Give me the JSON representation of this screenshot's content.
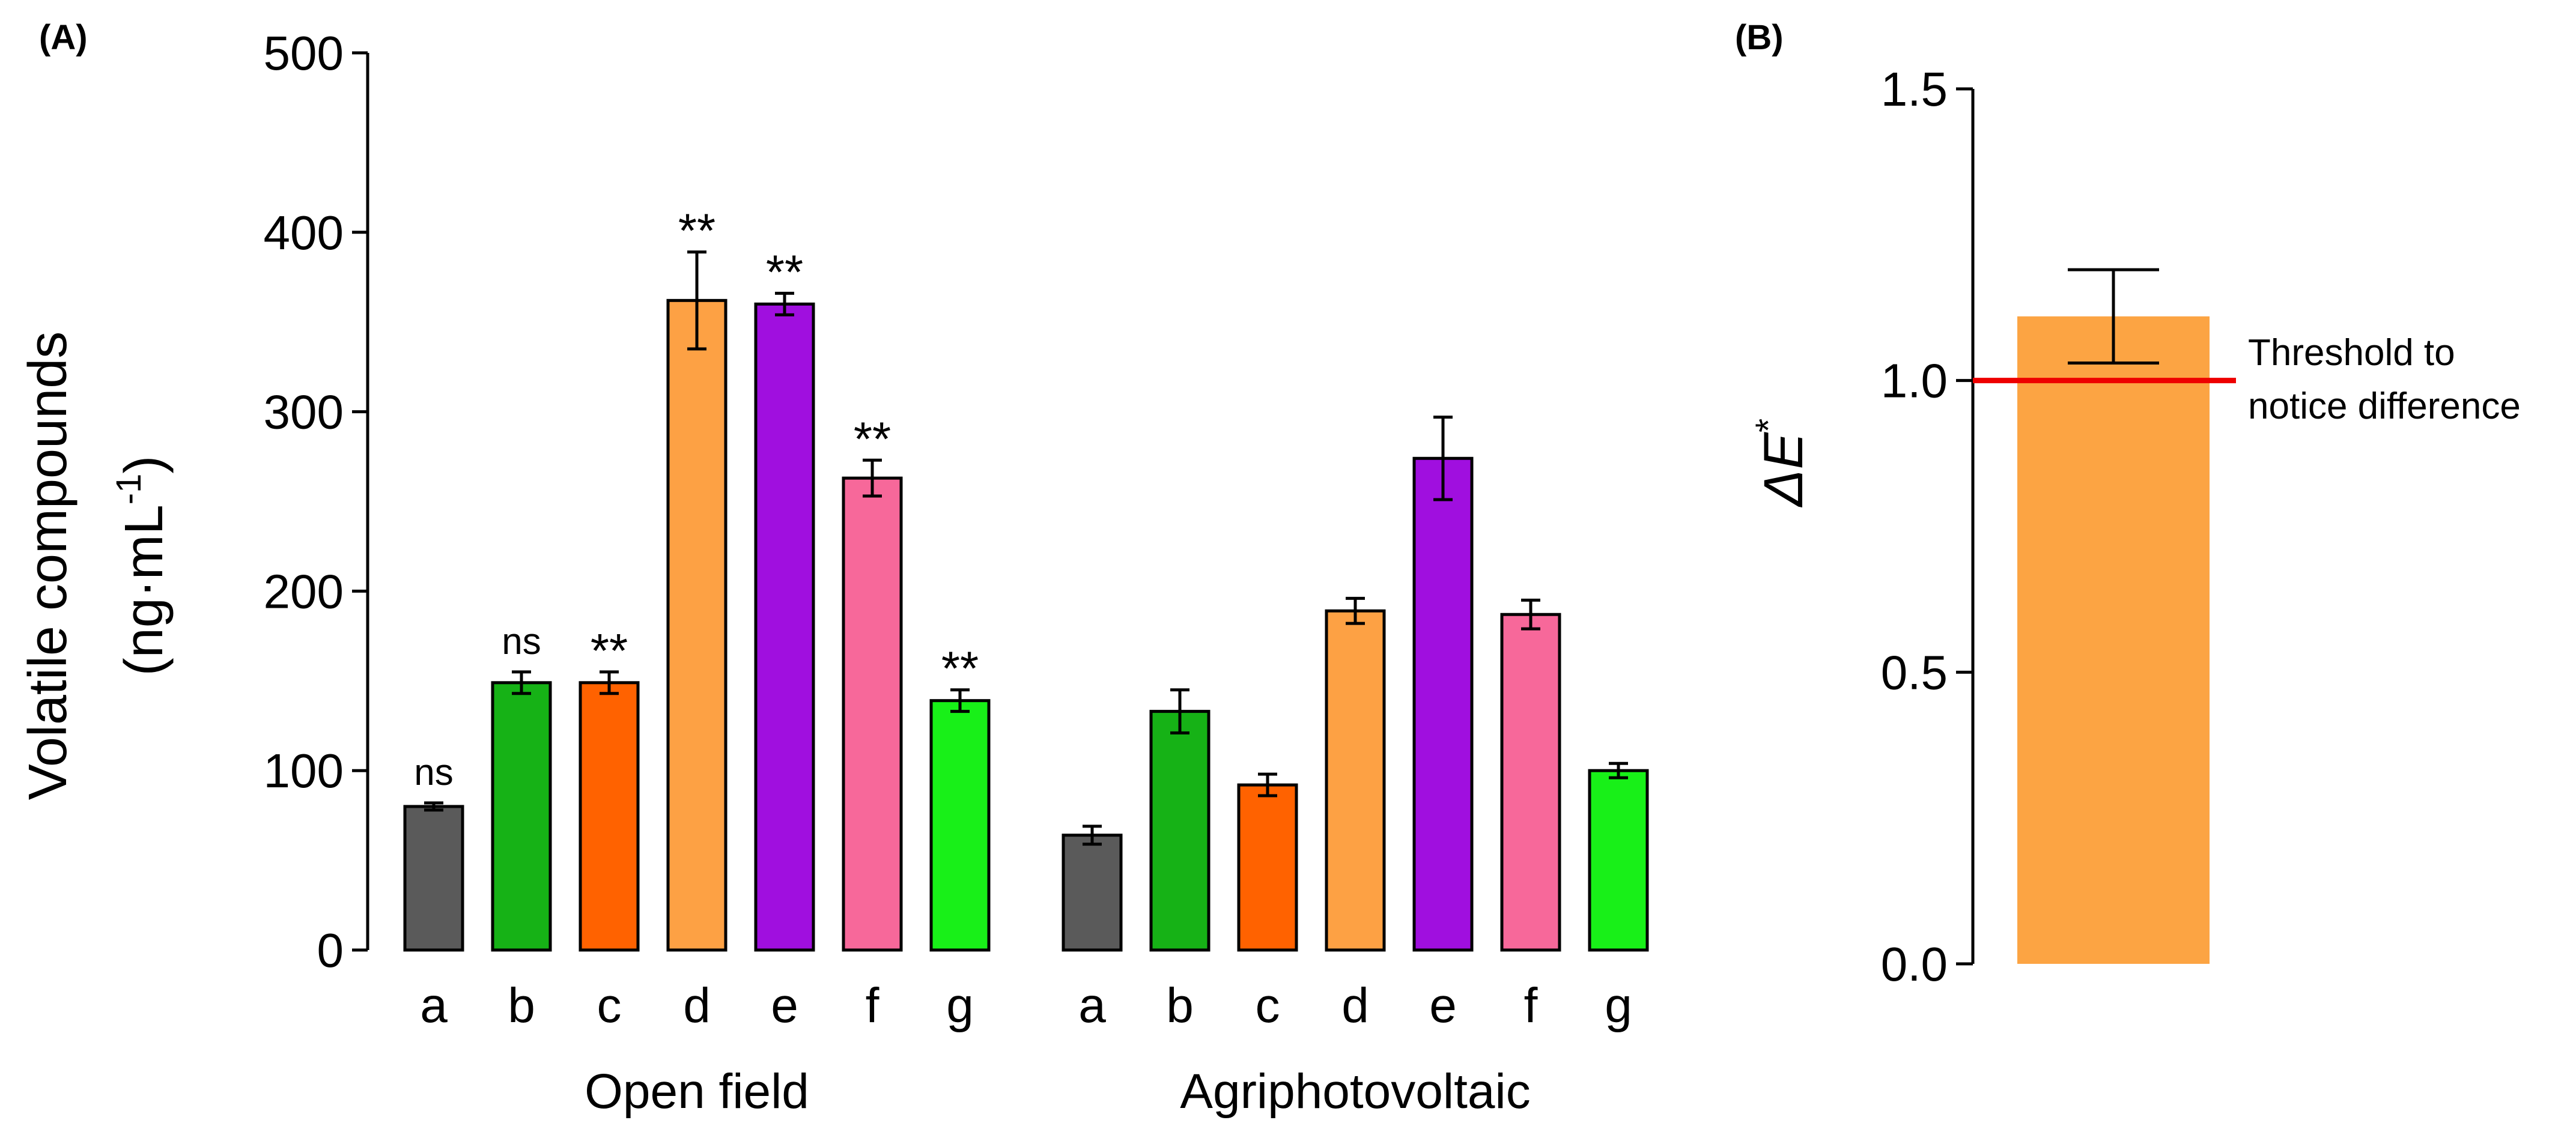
{
  "panels": {
    "a_label": "(A)",
    "b_label": "(B)"
  },
  "chart_data": [
    {
      "type": "bar",
      "panel": "A",
      "title": "",
      "ylabel_line1": "Volatile compounds",
      "ylabel_line2_prefix": "(ng·mL",
      "ylabel_line2_sup": "-1",
      "ylabel_line2_suffix": ")",
      "ylim": [
        0,
        500
      ],
      "yticks": [
        0,
        100,
        200,
        300,
        400,
        500
      ],
      "ytick_labels": [
        "0",
        "100",
        "200",
        "300",
        "400",
        "500"
      ],
      "groups": [
        {
          "name": "Open field",
          "categories": [
            "a",
            "b",
            "c",
            "d",
            "e",
            "f",
            "g"
          ],
          "values": [
            80,
            149,
            149,
            362,
            360,
            263,
            139
          ],
          "errors": [
            2,
            6,
            6,
            27,
            6,
            10,
            6
          ],
          "annotations": [
            "ns",
            "ns",
            "**",
            "**",
            "**",
            "**",
            "**"
          ]
        },
        {
          "name": "Agriphotovoltaic",
          "categories": [
            "a",
            "b",
            "c",
            "d",
            "e",
            "f",
            "g"
          ],
          "values": [
            64,
            133,
            92,
            189,
            274,
            187,
            100
          ],
          "errors": [
            5,
            12,
            6,
            7,
            23,
            8,
            4
          ],
          "annotations": [
            "",
            "",
            "",
            "",
            "",
            "",
            ""
          ]
        }
      ],
      "colors": [
        "#5a5a5a",
        "#16b216",
        "#ff6200",
        "#fda144",
        "#a00fdf",
        "#f7689a",
        "#18f018"
      ]
    },
    {
      "type": "bar",
      "panel": "B",
      "title": "",
      "ylabel_base": "ΔE",
      "ylabel_sup": "*",
      "ylim": [
        0,
        1.5
      ],
      "yticks": [
        0,
        0.5,
        1.0,
        1.5
      ],
      "ytick_labels": [
        "0.0",
        "0.5",
        "1.0",
        "1.5"
      ],
      "values": [
        1.11
      ],
      "errors": [
        0.08
      ],
      "bar_color": "#fca443",
      "threshold": {
        "value": 1.0,
        "color": "#ee0000",
        "label_line1": "Threshold to",
        "label_line2": "notice difference"
      }
    }
  ]
}
